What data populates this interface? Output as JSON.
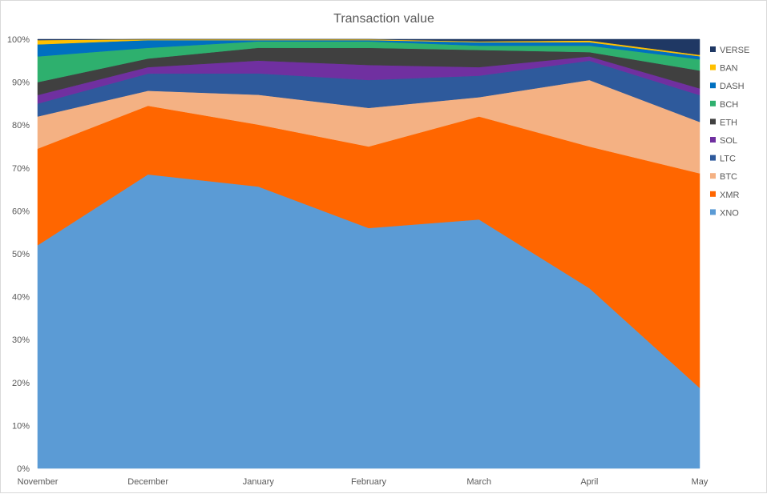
{
  "chart_data": {
    "type": "area",
    "stacked": true,
    "percent": true,
    "title": "Transaction value",
    "categories": [
      "November",
      "December",
      "January",
      "February",
      "March",
      "April",
      "May"
    ],
    "y_ticks": [
      "0%",
      "10%",
      "20%",
      "30%",
      "40%",
      "50%",
      "60%",
      "70%",
      "80%",
      "90%",
      "100%"
    ],
    "ylim": [
      0,
      100
    ],
    "grid": false,
    "legend_position": "right",
    "series": [
      {
        "name": "XNO",
        "color": "#5b9bd5",
        "values": [
          52,
          68.5,
          66,
          56,
          58,
          42,
          18
        ]
      },
      {
        "name": "XMR",
        "color": "#ff6600",
        "values": [
          22.5,
          16,
          14.5,
          19,
          24,
          33,
          48
        ]
      },
      {
        "name": "BTC",
        "color": "#f4b183",
        "values": [
          7.5,
          3.5,
          7,
          9,
          4.5,
          15.5,
          11.5
        ]
      },
      {
        "name": "LTC",
        "color": "#2e5a9c",
        "values": [
          3,
          4,
          5,
          6.5,
          5,
          4.5,
          6
        ]
      },
      {
        "name": "SOL",
        "color": "#7030a0",
        "values": [
          2,
          1.5,
          3,
          3.5,
          2,
          1,
          1.5
        ]
      },
      {
        "name": "ETH",
        "color": "#404040",
        "values": [
          3,
          2,
          3,
          4,
          4,
          1,
          4
        ]
      },
      {
        "name": "BCH",
        "color": "#2eb06e",
        "values": [
          6,
          2.5,
          1.5,
          1.5,
          1,
          1.5,
          2.5
        ]
      },
      {
        "name": "DASH",
        "color": "#0070c0",
        "values": [
          2.8,
          1.8,
          0.3,
          0.3,
          0.8,
          0.8,
          0.7
        ]
      },
      {
        "name": "BAN",
        "color": "#ffc000",
        "values": [
          1,
          0.2,
          0.2,
          0.2,
          0.2,
          0.4,
          0.3
        ]
      },
      {
        "name": "VERSE",
        "color": "#1f3864",
        "values": [
          0.2,
          0,
          0,
          0,
          0.5,
          0.3,
          3.5
        ]
      }
    ]
  }
}
